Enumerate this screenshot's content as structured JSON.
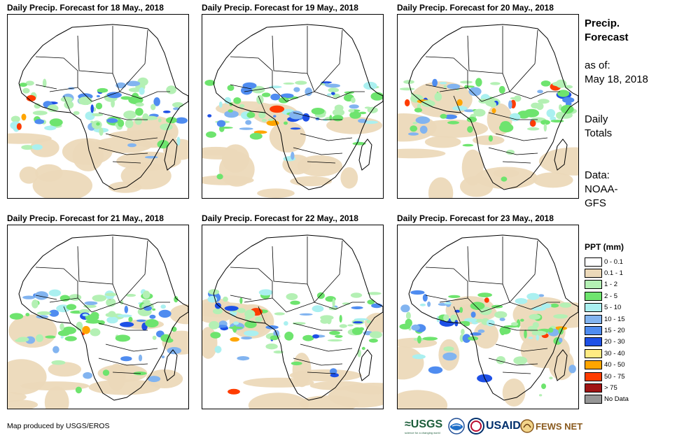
{
  "panels": [
    {
      "title": "Daily Precip. Forecast for 18 May., 2018"
    },
    {
      "title": "Daily Precip. Forecast for 19 May., 2018"
    },
    {
      "title": "Daily Precip. Forecast for 20 May., 2018"
    },
    {
      "title": "Daily Precip. Forecast for 21 May., 2018"
    },
    {
      "title": "Daily Precip. Forecast for 22 May., 2018"
    },
    {
      "title": "Daily Precip. Forecast for 23 May., 2018"
    }
  ],
  "side": {
    "heading1": "Precip.",
    "heading2": "Forecast",
    "asof_label": "as of:",
    "asof_date": "May 18, 2018",
    "totals1": "Daily",
    "totals2": "Totals",
    "data1": "Data:",
    "data2": "NOAA-",
    "data3": "GFS"
  },
  "legend": {
    "title": "PPT (mm)",
    "items": [
      {
        "label": "0 - 0.1",
        "color": "#ffffff"
      },
      {
        "label": "0.1 - 1",
        "color": "#ecd9b9"
      },
      {
        "label": "1 - 2",
        "color": "#b4f0b4"
      },
      {
        "label": "2 - 5",
        "color": "#6ee46e"
      },
      {
        "label": "5 - 10",
        "color": "#aaf0f0"
      },
      {
        "label": "10 - 15",
        "color": "#82b4f0"
      },
      {
        "label": "15 - 20",
        "color": "#4f8cf0"
      },
      {
        "label": "20 - 30",
        "color": "#1e50e6"
      },
      {
        "label": "30 - 40",
        "color": "#ffeb82"
      },
      {
        "label": "40 - 50",
        "color": "#ffa500"
      },
      {
        "label": "50 - 75",
        "color": "#ff3c00"
      },
      {
        "label": "> 75",
        "color": "#a01414"
      },
      {
        "label": "No Data",
        "color": "#969696"
      }
    ]
  },
  "footer": {
    "note": "Map produced by USGS/EROS",
    "logos": {
      "usgs": "≈USGS",
      "usgs_tag": "science for a changing world",
      "noaa": "NOAA",
      "usaid": "USAID",
      "fews": "FEWS NET"
    }
  }
}
